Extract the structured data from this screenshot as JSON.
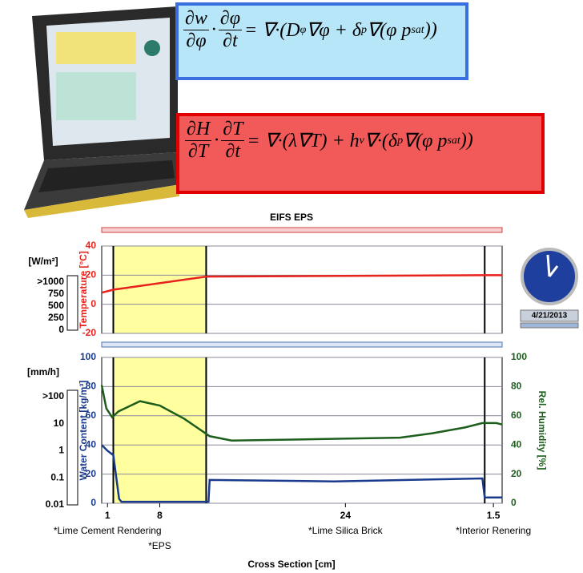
{
  "equations": [
    {
      "fractions": [
        [
          "∂w",
          "∂φ"
        ],
        [
          "∂φ",
          "∂t"
        ]
      ],
      "joiner": "·",
      "rhs": [
        "= ∇·(D",
        {
          "sub": "φ"
        },
        "∇φ + δ",
        {
          "sub": "p"
        },
        "∇(φ p",
        {
          "sub": "sat"
        },
        "))"
      ]
    },
    {
      "fractions": [
        [
          "∂H",
          "∂T"
        ],
        [
          "∂T",
          "∂t"
        ]
      ],
      "joiner": "·",
      "rhs": [
        "= ∇·(λ∇T) + h",
        {
          "sub": "v"
        },
        "∇·(δ",
        {
          "sub": "p"
        },
        "∇(φ p",
        {
          "sub": "sat"
        },
        "))"
      ]
    }
  ],
  "cross_section": {
    "thicknesses": [
      1,
      8,
      24,
      1.5
    ],
    "materials": [
      "*Lime Cement Rendering",
      "*EPS",
      "*Lime Silica Brick",
      "*Interior Renering"
    ],
    "highlight_layer": 1,
    "highlight_color": "#ffffa0",
    "xlabel": "Cross Section [cm]"
  },
  "clock": {
    "date": "4/21/2013"
  },
  "chart_data": [
    {
      "type": "line",
      "title": "EIFS EPS",
      "ylabel": "Temperature [°C]",
      "xlim": [
        0,
        34.5
      ],
      "ylim": [
        -20,
        40
      ],
      "yticks": [
        -20,
        0,
        20,
        40
      ],
      "grid": true,
      "gauge": {
        "label": "[W/m²]",
        "ticks": [
          ">1000",
          "750",
          "500",
          "250",
          "0"
        ]
      },
      "series": [
        {
          "color": "#e8231e",
          "axis": "y",
          "x": [
            0,
            1,
            9,
            33,
            34.5
          ],
          "values": [
            8,
            10,
            19,
            20,
            20
          ]
        }
      ]
    },
    {
      "type": "line",
      "ylabel": "Water Content [kg/m³]",
      "y2label": "Rel. Humidity [%]",
      "xlim": [
        0,
        34.5
      ],
      "ylim": [
        0,
        100
      ],
      "yticks": [
        0,
        20,
        40,
        60,
        80,
        100
      ],
      "y2lim": [
        0,
        100
      ],
      "y2ticks": [
        0,
        20,
        40,
        60,
        80,
        100
      ],
      "grid": true,
      "gauge": {
        "label": "[mm/h]",
        "ticks": [
          ">100",
          "10",
          "1",
          "0.1",
          "0.01"
        ]
      },
      "series": [
        {
          "color": "#1a3a8c",
          "axis": "y",
          "x": [
            0,
            0.5,
            1,
            1.5,
            1.7,
            9.2,
            9.3,
            20,
            32.8,
            33,
            34.5
          ],
          "values": [
            40,
            36,
            33,
            3,
            1,
            1,
            16,
            15,
            17,
            4,
            4
          ]
        },
        {
          "color": "#1d5e1d",
          "axis": "y2",
          "x": [
            0,
            0.4,
            0.9,
            1.45,
            3.3,
            5,
            7.1,
            9.3,
            11.2,
            18.8,
            25.7,
            28.5,
            31.3,
            32.8,
            34,
            34.5
          ],
          "values": [
            81,
            65,
            59,
            63,
            70,
            67,
            58,
            46,
            43,
            44,
            45,
            48,
            52,
            55,
            55,
            54
          ]
        }
      ]
    }
  ]
}
